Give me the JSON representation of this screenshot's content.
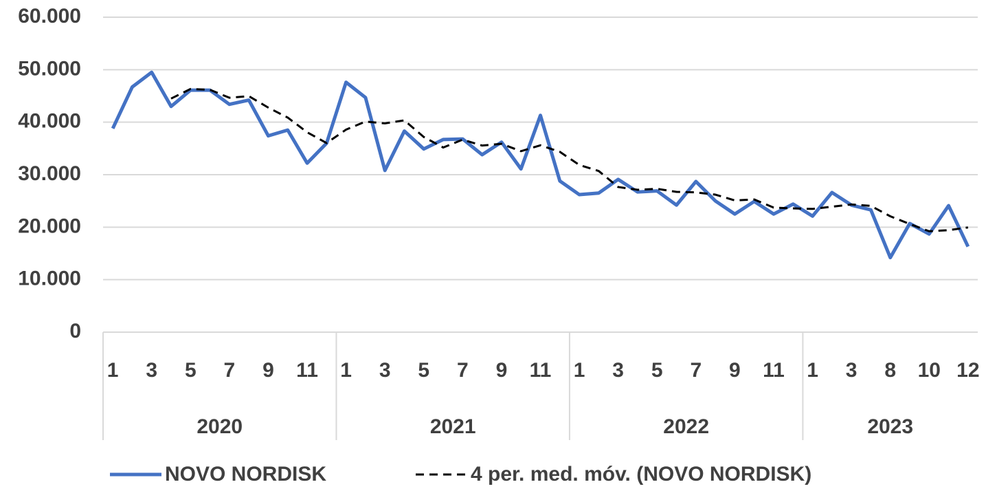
{
  "chart_data": {
    "type": "line",
    "groups": [
      {
        "label": "2020",
        "categories": [
          "1",
          null,
          "3",
          null,
          "5",
          null,
          "7",
          null,
          "9",
          null,
          "11",
          null
        ]
      },
      {
        "label": "2021",
        "categories": [
          "1",
          null,
          "3",
          null,
          "5",
          null,
          "7",
          null,
          "9",
          null,
          "11",
          null
        ]
      },
      {
        "label": "2022",
        "categories": [
          "1",
          null,
          "3",
          null,
          "5",
          null,
          "7",
          null,
          "9",
          null,
          "11",
          null
        ]
      },
      {
        "label": "2023",
        "categories": [
          "1",
          null,
          "3",
          null,
          "8",
          null,
          "10",
          null,
          "12"
        ]
      }
    ],
    "series": [
      {
        "name": "NOVO NORDISK",
        "color": "#4472c4",
        "dash": "solid",
        "values": [
          38800,
          46700,
          49500,
          43000,
          46100,
          46100,
          43400,
          44200,
          37400,
          38500,
          32200,
          36000,
          47600,
          44700,
          30800,
          38300,
          34900,
          36700,
          36800,
          33800,
          36200,
          31100,
          41300,
          28800,
          26200,
          26500,
          29100,
          26700,
          26900,
          24200,
          28700,
          25000,
          22500,
          24900,
          22500,
          24400,
          22100,
          26600,
          24200,
          23300,
          14200,
          20700,
          18700,
          24100,
          16300
        ]
      },
      {
        "name": "4 per. med. móv. (NOVO NORDISK)",
        "color": "#000000",
        "dash": "dashed",
        "values": [
          null,
          null,
          null,
          44500,
          46325,
          46175,
          44650,
          44950,
          42775,
          40875,
          38075,
          36025,
          38575,
          40125,
          39775,
          40350,
          37175,
          35175,
          36675,
          35550,
          35875,
          34475,
          35600,
          34350,
          31850,
          30700,
          27650,
          27125,
          27300,
          26725,
          26625,
          26200,
          25100,
          25275,
          23725,
          23575,
          23475,
          23900,
          24325,
          24050,
          22075,
          20600,
          19225,
          19425,
          19950
        ]
      }
    ],
    "ylim": [
      0,
      60000
    ],
    "yticks": [
      0,
      {
        "value": 10000,
        "label": "10.000"
      },
      {
        "value": 20000,
        "label": "20.000"
      },
      {
        "value": 30000,
        "label": "30.000"
      },
      {
        "value": 40000,
        "label": "40.000"
      },
      {
        "value": 50000,
        "label": "50.000"
      },
      {
        "value": 60000,
        "label": "60.000"
      }
    ],
    "grid": true,
    "legend": "bottom"
  }
}
